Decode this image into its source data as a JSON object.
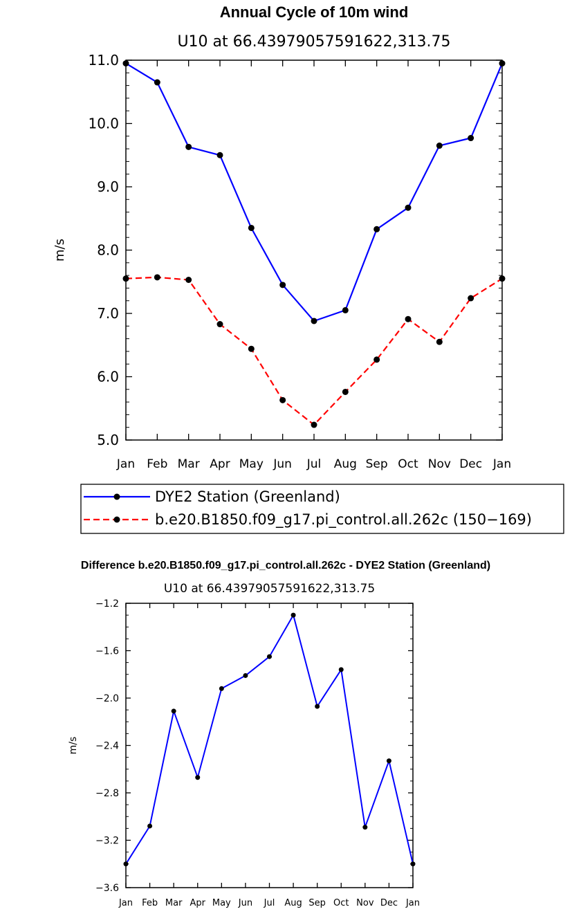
{
  "chart_data": [
    {
      "type": "line",
      "title": "Annual Cycle of 10m wind",
      "subtitle": "U10 at 66.43979057591622,313.75",
      "xlabel": "",
      "ylabel": "m/s",
      "categories": [
        "Jan",
        "Feb",
        "Mar",
        "Apr",
        "May",
        "Jun",
        "Jul",
        "Aug",
        "Sep",
        "Oct",
        "Nov",
        "Dec",
        "Jan"
      ],
      "ylim": [
        5.0,
        11.0
      ],
      "yticks": [
        "5.0",
        "6.0",
        "7.0",
        "8.0",
        "9.0",
        "10.0",
        "11.0"
      ],
      "grid": false,
      "legend": "bottom",
      "series": [
        {
          "name": "DYE2 Station (Greenland)",
          "color": "#0000ff",
          "dash": "solid",
          "values": [
            10.95,
            10.65,
            9.63,
            9.5,
            8.35,
            7.45,
            6.88,
            7.05,
            8.33,
            8.67,
            9.65,
            9.77,
            10.95
          ]
        },
        {
          "name": "b.e20.B1850.f09_g17.pi_control.all.262c (150−169)",
          "color": "#ff0000",
          "dash": "dashed",
          "values": [
            7.55,
            7.57,
            7.53,
            6.83,
            6.44,
            5.63,
            5.24,
            5.76,
            6.27,
            6.91,
            6.55,
            7.24,
            7.55
          ]
        }
      ]
    },
    {
      "type": "line",
      "title": "Difference b.e20.B1850.f09_g17.pi_control.all.262c - DYE2 Station (Greenland)",
      "subtitle": "U10 at 66.43979057591622,313.75",
      "xlabel": "",
      "ylabel": "m/s",
      "categories": [
        "Jan",
        "Feb",
        "Mar",
        "Apr",
        "May",
        "Jun",
        "Jul",
        "Aug",
        "Sep",
        "Oct",
        "Nov",
        "Dec",
        "Jan"
      ],
      "ylim": [
        -3.6,
        -1.2
      ],
      "yticks": [
        "−3.6",
        "−3.2",
        "−2.8",
        "−2.4",
        "−2.0",
        "−1.6",
        "−1.2"
      ],
      "grid": false,
      "series": [
        {
          "name": "Difference",
          "color": "#0000ff",
          "dash": "solid",
          "values": [
            -3.4,
            -3.08,
            -2.11,
            -2.67,
            -1.92,
            -1.81,
            -1.65,
            -1.3,
            -2.07,
            -1.76,
            -3.09,
            -2.53,
            -3.4
          ]
        }
      ]
    }
  ]
}
